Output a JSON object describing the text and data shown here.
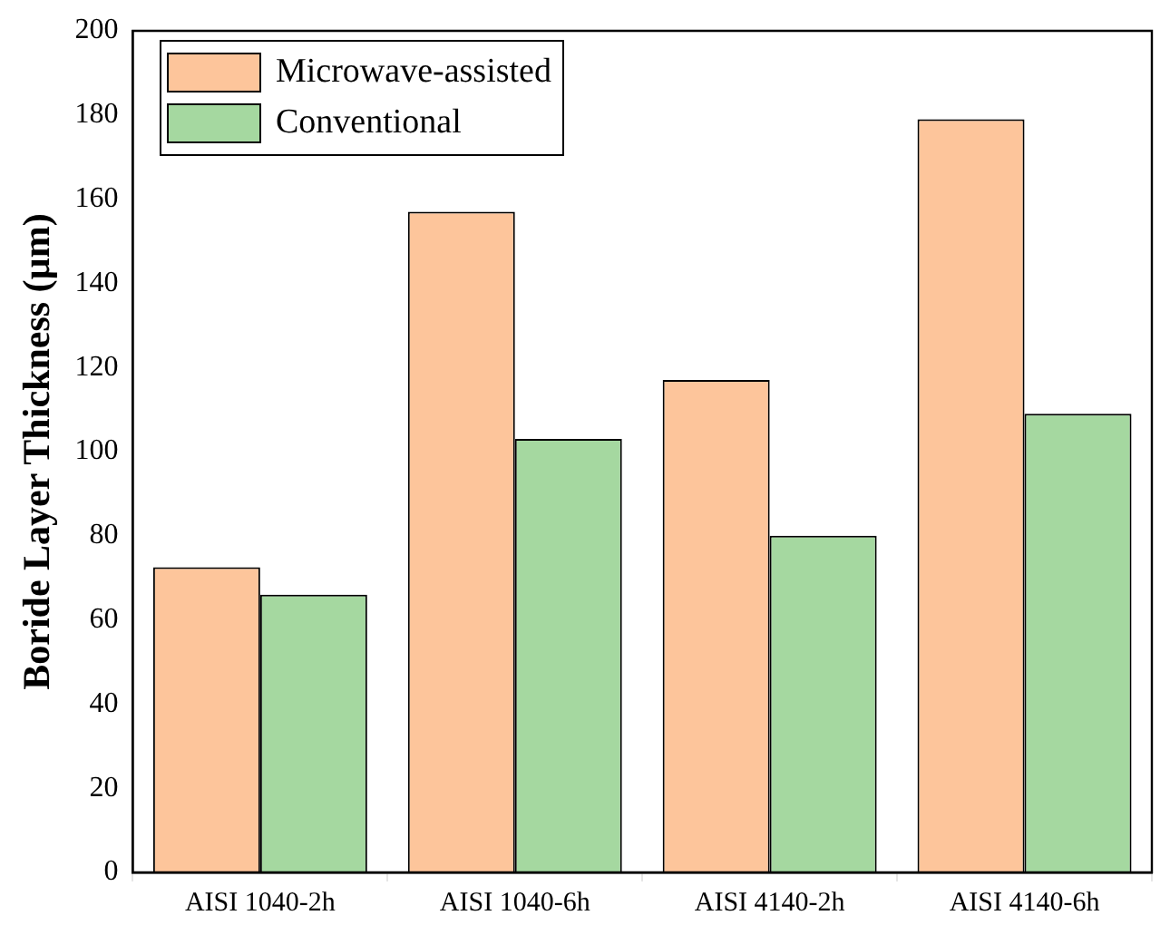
{
  "chart_data": {
    "type": "bar",
    "ylabel": "Boride Layer Thickness (µm)",
    "categories": [
      "AISI 1040-2h",
      "AISI 1040-6h",
      "AISI 4140-2h",
      "AISI 4140-6h"
    ],
    "series": [
      {
        "name": "Microwave-assisted",
        "color": "#fdc59b",
        "values": [
          72.5,
          157,
          117,
          179
        ]
      },
      {
        "name": "Conventional",
        "color": "#a5d8a0",
        "values": [
          66,
          103,
          80,
          109
        ]
      }
    ],
    "ylim": [
      0,
      200
    ],
    "yticks": [
      0,
      20,
      40,
      60,
      80,
      100,
      120,
      140,
      160,
      180,
      200
    ],
    "grid": false,
    "legend": "top left"
  }
}
